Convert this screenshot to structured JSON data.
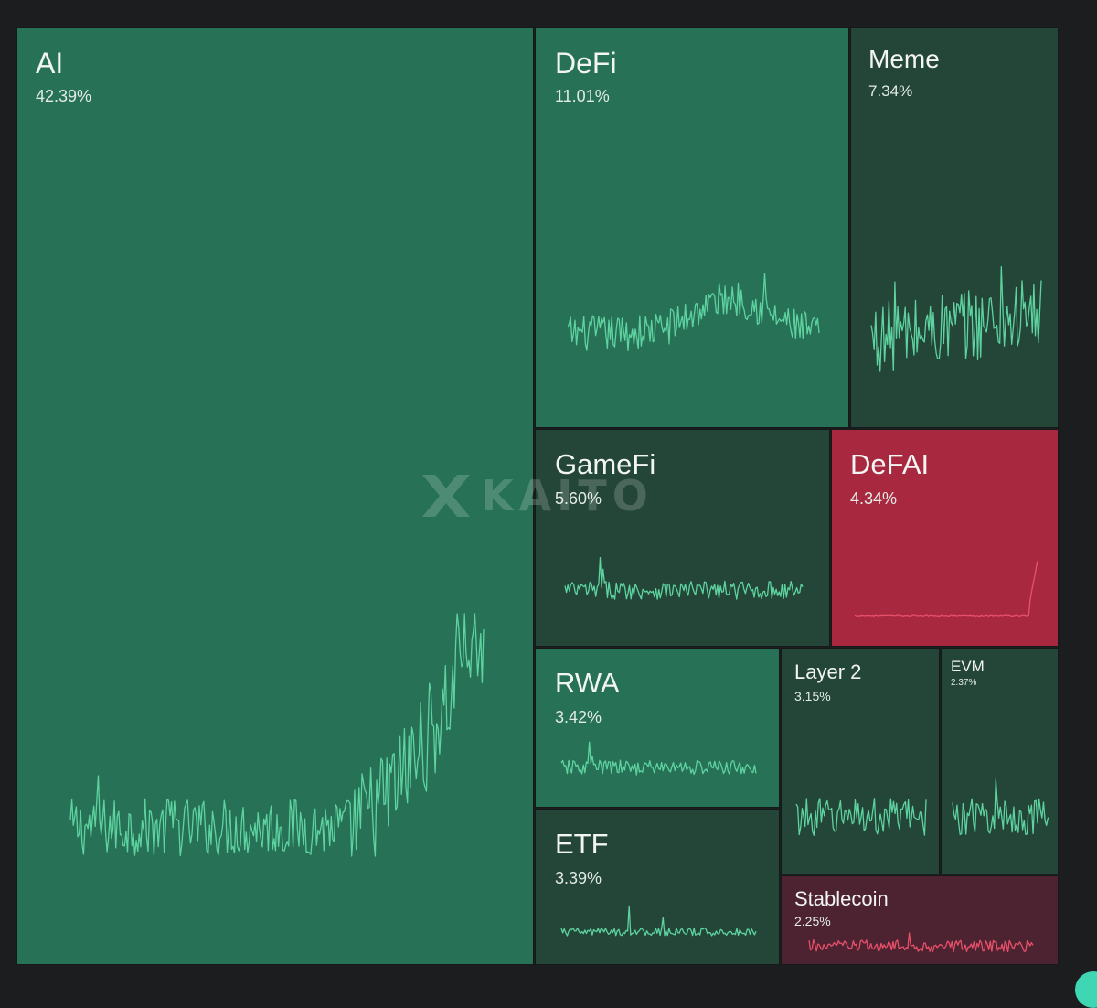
{
  "chart_data": {
    "type": "treemap",
    "title": "",
    "watermark": "KAITO",
    "colors": {
      "bright_green": "#277157",
      "dark_green": "#234638",
      "red": "#a8293f",
      "dark_red": "#4d2231",
      "line_green": "#5ed3a0",
      "line_red": "#e8506a"
    },
    "categories": [
      "AI",
      "DeFi",
      "Meme",
      "GameFi",
      "DeFAI",
      "RWA",
      "Layer 2",
      "EVM",
      "ETF",
      "Stablecoin"
    ],
    "values": [
      42.39,
      11.01,
      7.34,
      5.6,
      4.34,
      3.42,
      3.15,
      2.37,
      3.39,
      2.25
    ],
    "tiles": [
      {
        "id": "ai",
        "name": "AI",
        "share": "42.39%",
        "tone": "bright_green",
        "trend": "spike-end"
      },
      {
        "id": "defi",
        "name": "DeFi",
        "share": "11.01%",
        "tone": "bright_green",
        "trend": "hump"
      },
      {
        "id": "meme",
        "name": "Meme",
        "share": "7.34%",
        "tone": "dark_green",
        "trend": "volatile"
      },
      {
        "id": "gamefi",
        "name": "GameFi",
        "share": "5.60%",
        "tone": "dark_green",
        "trend": "flat-early-spike"
      },
      {
        "id": "defai",
        "name": "DeFAI",
        "share": "4.34%",
        "tone": "red",
        "trend": "flat-end-spike"
      },
      {
        "id": "rwa",
        "name": "RWA",
        "share": "3.42%",
        "tone": "bright_green",
        "trend": "flat-early-spike"
      },
      {
        "id": "layer2",
        "name": "Layer 2",
        "share": "3.15%",
        "tone": "dark_green",
        "trend": "flat-noisy"
      },
      {
        "id": "evm",
        "name": "EVM",
        "share": "2.37%",
        "tone": "dark_green",
        "trend": "flat-noisy"
      },
      {
        "id": "etf",
        "name": "ETF",
        "share": "3.39%",
        "tone": "dark_green",
        "trend": "flat-mid-spike"
      },
      {
        "id": "stablecoin",
        "name": "Stablecoin",
        "share": "2.25%",
        "tone": "dark_red",
        "trend": "flat-noisy"
      }
    ]
  }
}
